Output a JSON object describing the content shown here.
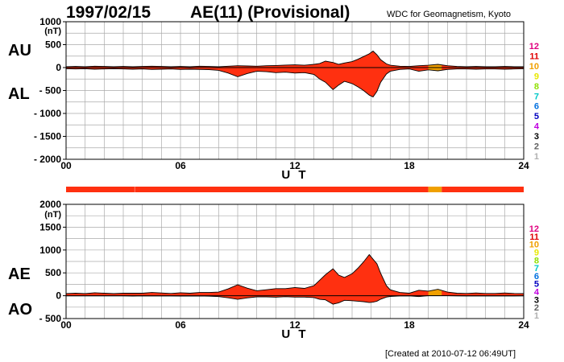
{
  "header": {
    "date": "1997/02/15",
    "index": "AE(11) (Provisional)",
    "source": "WDC for Geomagnetism, Kyoto"
  },
  "footer": {
    "created": "[Created at 2010-07-12 06:49UT]"
  },
  "legend": {
    "levels": [
      {
        "label": "12",
        "color": "#e0007f"
      },
      {
        "label": "11",
        "color": "#e00000"
      },
      {
        "label": "10",
        "color": "#f0a000"
      },
      {
        "label": "9",
        "color": "#e8e800"
      },
      {
        "label": "8",
        "color": "#90e000"
      },
      {
        "label": "7",
        "color": "#00c8c8"
      },
      {
        "label": "6",
        "color": "#0070e0"
      },
      {
        "label": "5",
        "color": "#0000c0"
      },
      {
        "label": "4",
        "color": "#c000e0"
      },
      {
        "label": "3",
        "color": "#000000"
      },
      {
        "label": "2",
        "color": "#606060"
      },
      {
        "label": "1",
        "color": "#b0b0b0"
      }
    ]
  },
  "colors": {
    "fill_main": "#ff3010",
    "fill_alt": "#f0a000",
    "bar_main": "#ff3010",
    "bar_alt": "#f0a000",
    "grid": "#aaaaaa",
    "outline": "#000000"
  },
  "chart_data": [
    {
      "type": "area",
      "panel": "AU-AL",
      "xlabel": "U T",
      "unit_label": "(nT)",
      "upper_label": "AU",
      "lower_label": "AL",
      "xlim": [
        0,
        24
      ],
      "ylim": [
        -2000,
        1000
      ],
      "xticks": [
        "00",
        "06",
        "12",
        "18",
        "24"
      ],
      "xtick_values": [
        0,
        6,
        12,
        18,
        24
      ],
      "yticks": [
        "1000",
        "500",
        "0",
        "- 500",
        "- 1000",
        "- 1500",
        "- 2000"
      ],
      "ytick_values": [
        1000,
        500,
        0,
        -500,
        -1000,
        -1500,
        -2000
      ],
      "alt_color_range": [
        19.0,
        19.7
      ],
      "series": [
        {
          "name": "AU",
          "x": [
            0,
            0.5,
            1,
            1.5,
            2,
            2.5,
            3,
            3.5,
            4,
            4.5,
            5,
            5.5,
            6,
            6.5,
            7,
            7.5,
            8,
            8.5,
            9,
            9.5,
            10,
            10.5,
            11,
            11.5,
            12,
            12.5,
            13,
            13.3,
            13.6,
            14,
            14.3,
            14.6,
            15,
            15.3,
            15.6,
            15.9,
            16.1,
            16.3,
            16.5,
            16.8,
            17,
            17.5,
            18,
            18.5,
            19,
            19.5,
            20,
            20.5,
            21,
            21.5,
            22,
            22.5,
            23,
            23.5,
            24
          ],
          "values": [
            20,
            25,
            20,
            30,
            25,
            20,
            25,
            20,
            25,
            30,
            25,
            20,
            25,
            20,
            30,
            25,
            20,
            30,
            40,
            35,
            30,
            40,
            45,
            55,
            60,
            50,
            70,
            90,
            140,
            110,
            70,
            100,
            130,
            180,
            240,
            300,
            360,
            280,
            170,
            80,
            50,
            30,
            25,
            40,
            50,
            70,
            40,
            25,
            20,
            25,
            20,
            20,
            25,
            20,
            20
          ]
        },
        {
          "name": "AL",
          "x": [
            0,
            0.5,
            1,
            1.5,
            2,
            2.5,
            3,
            3.5,
            4,
            4.5,
            5,
            5.5,
            6,
            6.5,
            7,
            7.5,
            8,
            8.5,
            9,
            9.5,
            10,
            10.5,
            11,
            11.5,
            12,
            12.5,
            13,
            13.3,
            13.6,
            14,
            14.3,
            14.6,
            15,
            15.3,
            15.6,
            15.9,
            16.1,
            16.3,
            16.5,
            16.8,
            17,
            17.5,
            18,
            18.5,
            19,
            19.5,
            20,
            20.5,
            21,
            21.5,
            22,
            22.5,
            23,
            23.5,
            24
          ],
          "values": [
            -25,
            -30,
            -25,
            -35,
            -30,
            -25,
            -30,
            -35,
            -30,
            -40,
            -35,
            -30,
            -40,
            -35,
            -40,
            -45,
            -60,
            -120,
            -200,
            -130,
            -80,
            -90,
            -110,
            -100,
            -120,
            -110,
            -150,
            -250,
            -320,
            -480,
            -380,
            -300,
            -350,
            -420,
            -500,
            -600,
            -640,
            -520,
            -320,
            -140,
            -80,
            -40,
            -30,
            -80,
            -50,
            -70,
            -40,
            -30,
            -30,
            -35,
            -30,
            -30,
            -35,
            -30,
            -25
          ]
        }
      ]
    },
    {
      "type": "area",
      "panel": "AE-AO",
      "xlabel": "U T",
      "unit_label": "(nT)",
      "upper_label": "AE",
      "lower_label": "AO",
      "xlim": [
        0,
        24
      ],
      "ylim": [
        -500,
        2000
      ],
      "xticks": [
        "00",
        "06",
        "12",
        "18",
        "24"
      ],
      "xtick_values": [
        0,
        6,
        12,
        18,
        24
      ],
      "yticks": [
        "2000",
        "1500",
        "1000",
        "500",
        "0",
        "- 500"
      ],
      "ytick_values": [
        2000,
        1500,
        1000,
        500,
        0,
        -500
      ],
      "alt_color_range": [
        19.0,
        19.7
      ],
      "series": [
        {
          "name": "AE",
          "x": [
            0,
            0.5,
            1,
            1.5,
            2,
            2.5,
            3,
            3.5,
            4,
            4.5,
            5,
            5.5,
            6,
            6.5,
            7,
            7.5,
            8,
            8.5,
            9,
            9.5,
            10,
            10.5,
            11,
            11.5,
            12,
            12.5,
            13,
            13.3,
            13.6,
            14,
            14.3,
            14.6,
            15,
            15.3,
            15.6,
            15.9,
            16.1,
            16.3,
            16.5,
            16.8,
            17,
            17.5,
            18,
            18.5,
            19,
            19.5,
            20,
            20.5,
            21,
            21.5,
            22,
            22.5,
            23,
            23.5,
            24
          ],
          "values": [
            45,
            55,
            45,
            65,
            55,
            45,
            55,
            55,
            55,
            70,
            60,
            50,
            65,
            55,
            70,
            70,
            80,
            150,
            240,
            165,
            110,
            130,
            155,
            155,
            180,
            160,
            220,
            340,
            460,
            590,
            450,
            400,
            480,
            600,
            740,
            900,
            800,
            700,
            490,
            220,
            130,
            70,
            55,
            120,
            100,
            140,
            80,
            55,
            50,
            60,
            50,
            50,
            60,
            50,
            45
          ]
        },
        {
          "name": "AO",
          "x": [
            0,
            0.5,
            1,
            1.5,
            2,
            2.5,
            3,
            3.5,
            4,
            4.5,
            5,
            5.5,
            6,
            6.5,
            7,
            7.5,
            8,
            8.5,
            9,
            9.5,
            10,
            10.5,
            11,
            11.5,
            12,
            12.5,
            13,
            13.3,
            13.6,
            14,
            14.3,
            14.6,
            15,
            15.3,
            15.6,
            15.9,
            16.1,
            16.3,
            16.5,
            16.8,
            17,
            17.5,
            18,
            18.5,
            19,
            19.5,
            20,
            20.5,
            21,
            21.5,
            22,
            22.5,
            23,
            23.5,
            24
          ],
          "values": [
            -3,
            -3,
            -3,
            -3,
            -3,
            -3,
            -3,
            -8,
            -3,
            -5,
            -5,
            -5,
            -8,
            -8,
            -5,
            -10,
            -20,
            -45,
            -80,
            -48,
            -25,
            -25,
            -32,
            -22,
            -30,
            -30,
            -40,
            -80,
            -90,
            -185,
            -155,
            -100,
            -110,
            -120,
            -130,
            -150,
            -140,
            -120,
            -75,
            -30,
            -15,
            -5,
            -3,
            -20,
            0,
            0,
            0,
            -3,
            -5,
            -5,
            -5,
            -5,
            -5,
            -5,
            -3
          ]
        }
      ]
    }
  ],
  "activity_bar": {
    "segments": [
      {
        "start": 0,
        "end": 19.0,
        "level": "11"
      },
      {
        "start": 19.0,
        "end": 19.7,
        "level": "10"
      },
      {
        "start": 19.7,
        "end": 24,
        "level": "11"
      }
    ]
  }
}
